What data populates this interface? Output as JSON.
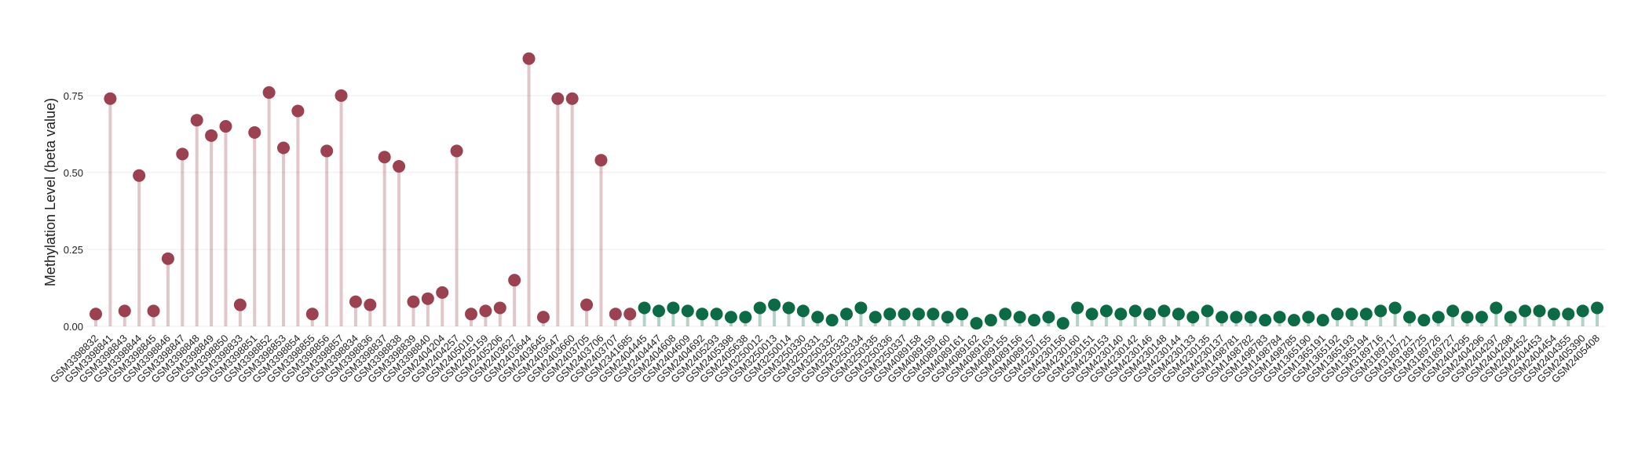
{
  "chart_data": {
    "type": "lollipop",
    "y_label": "Methylation Level (beta value)",
    "categories": [
      "GSM3398832",
      "GSM3398841",
      "GSM3398843",
      "GSM3398844",
      "GSM3398845",
      "GSM3398846",
      "GSM3398847",
      "GSM3398848",
      "GSM3398849",
      "GSM3398850",
      "GSM3398833",
      "GSM3398851",
      "GSM3398852",
      "GSM3398853",
      "GSM3398854",
      "GSM3398855",
      "GSM3398856",
      "GSM3398857",
      "GSM3398834",
      "GSM3398836",
      "GSM3398837",
      "GSM3398838",
      "GSM3398839",
      "GSM3398840",
      "GSM2404204",
      "GSM2404257",
      "GSM2405010",
      "GSM2405159",
      "GSM2405206",
      "GSM2403627",
      "GSM2403644",
      "GSM2403645",
      "GSM2403647",
      "GSM2403660",
      "GSM2403705",
      "GSM2403706",
      "GSM2403707",
      "GSM2341685",
      "GSM2404445",
      "GSM2404447",
      "GSM2404608",
      "GSM2404609",
      "GSM2404692",
      "GSM2405293",
      "GSM2405398",
      "GSM2405638",
      "GSM3250012",
      "GSM3250013",
      "GSM3250014",
      "GSM3250330",
      "GSM3250331",
      "GSM3250332",
      "GSM3250333",
      "GSM3250334",
      "GSM3250335",
      "GSM3250336",
      "GSM3250337",
      "GSM4089158",
      "GSM4089159",
      "GSM4089160",
      "GSM4089161",
      "GSM4089162",
      "GSM4089163",
      "GSM4089155",
      "GSM4089156",
      "GSM4089157",
      "GSM4230155",
      "GSM4230156",
      "GSM4230160",
      "GSM4230151",
      "GSM4230153",
      "GSM4230140",
      "GSM4230142",
      "GSM4230146",
      "GSM4230148",
      "GSM4230144",
      "GSM4230133",
      "GSM4230135",
      "GSM4230137",
      "GSM1498781",
      "GSM1498782",
      "GSM1498783",
      "GSM1498784",
      "GSM1498785",
      "GSM1365190",
      "GSM1365191",
      "GSM1365192",
      "GSM1365193",
      "GSM1365194",
      "GSM3189716",
      "GSM3189717",
      "GSM3189721",
      "GSM3189725",
      "GSM3189726",
      "GSM3189727",
      "GSM2404295",
      "GSM2404296",
      "GSM2404297",
      "GSM2404298",
      "GSM2404452",
      "GSM2404453",
      "GSM2404454",
      "GSM2404355",
      "GSM2405390",
      "GSM2405408"
    ],
    "values": [
      0.04,
      0.74,
      0.05,
      0.49,
      0.05,
      0.22,
      0.56,
      0.67,
      0.62,
      0.65,
      0.07,
      0.63,
      0.76,
      0.58,
      0.7,
      0.04,
      0.57,
      0.75,
      0.08,
      0.07,
      0.55,
      0.52,
      0.08,
      0.09,
      0.11,
      0.57,
      0.04,
      0.05,
      0.06,
      0.15,
      0.87,
      0.03,
      0.74,
      0.74,
      0.07,
      0.54,
      0.04,
      0.04,
      0.06,
      0.05,
      0.06,
      0.05,
      0.04,
      0.04,
      0.03,
      0.03,
      0.06,
      0.07,
      0.06,
      0.05,
      0.03,
      0.02,
      0.04,
      0.06,
      0.03,
      0.04,
      0.04,
      0.04,
      0.04,
      0.03,
      0.04,
      0.01,
      0.02,
      0.04,
      0.03,
      0.02,
      0.03,
      0.01,
      0.06,
      0.04,
      0.05,
      0.04,
      0.05,
      0.04,
      0.05,
      0.04,
      0.03,
      0.05,
      0.03,
      0.03,
      0.03,
      0.02,
      0.03,
      0.02,
      0.03,
      0.02,
      0.04,
      0.04,
      0.04,
      0.05,
      0.06,
      0.03,
      0.02,
      0.03,
      0.05,
      0.03,
      0.03,
      0.06,
      0.03,
      0.05,
      0.05,
      0.04,
      0.04,
      0.05,
      0.06
    ],
    "colors": [
      "#9b4150",
      "#9b4150",
      "#9b4150",
      "#9b4150",
      "#9b4150",
      "#9b4150",
      "#9b4150",
      "#9b4150",
      "#9b4150",
      "#9b4150",
      "#9b4150",
      "#9b4150",
      "#9b4150",
      "#9b4150",
      "#9b4150",
      "#9b4150",
      "#9b4150",
      "#9b4150",
      "#9b4150",
      "#9b4150",
      "#9b4150",
      "#9b4150",
      "#9b4150",
      "#9b4150",
      "#9b4150",
      "#9b4150",
      "#9b4150",
      "#9b4150",
      "#9b4150",
      "#9b4150",
      "#9b4150",
      "#9b4150",
      "#9b4150",
      "#9b4150",
      "#9b4150",
      "#9b4150",
      "#9b4150",
      "#9b4150",
      "#0b6b45",
      "#0b6b45",
      "#0b6b45",
      "#0b6b45",
      "#0b6b45",
      "#0b6b45",
      "#0b6b45",
      "#0b6b45",
      "#0b6b45",
      "#0b6b45",
      "#0b6b45",
      "#0b6b45",
      "#0b6b45",
      "#0b6b45",
      "#0b6b45",
      "#0b6b45",
      "#0b6b45",
      "#0b6b45",
      "#0b6b45",
      "#0b6b45",
      "#0b6b45",
      "#0b6b45",
      "#0b6b45",
      "#0b6b45",
      "#0b6b45",
      "#0b6b45",
      "#0b6b45",
      "#0b6b45",
      "#0b6b45",
      "#0b6b45",
      "#0b6b45",
      "#0b6b45",
      "#0b6b45",
      "#0b6b45",
      "#0b6b45",
      "#0b6b45",
      "#0b6b45",
      "#0b6b45",
      "#0b6b45",
      "#0b6b45",
      "#0b6b45",
      "#0b6b45",
      "#0b6b45",
      "#0b6b45",
      "#0b6b45",
      "#0b6b45",
      "#0b6b45",
      "#0b6b45",
      "#0b6b45",
      "#0b6b45",
      "#0b6b45",
      "#0b6b45",
      "#0b6b45",
      "#0b6b45",
      "#0b6b45",
      "#0b6b45",
      "#0b6b45",
      "#0b6b45",
      "#0b6b45",
      "#0b6b45",
      "#0b6b45",
      "#0b6b45",
      "#0b6b45",
      "#0b6b45",
      "#0b6b45",
      "#0b6b45",
      "#0b6b45"
    ],
    "ylim": [
      0,
      0.9
    ],
    "yticks": [
      {
        "value": 0,
        "label": "0.00"
      },
      {
        "value": 0.25,
        "label": "0.25"
      },
      {
        "value": 0.5,
        "label": "0.50"
      },
      {
        "value": 0.75,
        "label": "0.75"
      }
    ],
    "grid": true
  }
}
